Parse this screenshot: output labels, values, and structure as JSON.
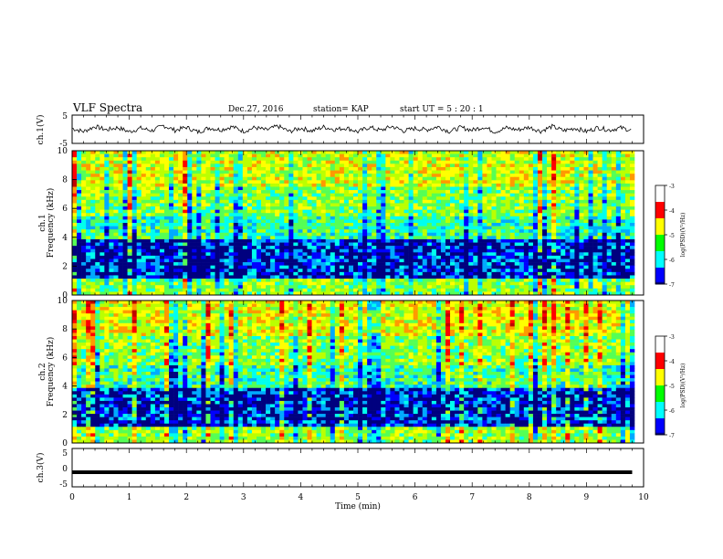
{
  "header": {
    "title": "VLF Spectra",
    "date": "Dec.27, 2016",
    "station": "station= KAP",
    "start": "start  UT =   5 : 20 : 1"
  },
  "colormap": [
    "#00007f",
    "#0000ff",
    "#00aaff",
    "#00ffee",
    "#55ff55",
    "#bbff00",
    "#ffff00",
    "#ff9900",
    "#ff0000",
    "#c00000"
  ],
  "chart_data": [
    {
      "type": "line",
      "name": "ch1-waveform",
      "ylabel": "ch.1(V)",
      "ylim": [
        -5,
        5
      ],
      "yticks": [
        "5",
        "-5"
      ],
      "xlim": [
        0,
        10
      ],
      "points": [
        [
          0,
          0.3
        ],
        [
          0.2,
          -0.8
        ],
        [
          0.4,
          1.0
        ],
        [
          0.6,
          -0.2
        ],
        [
          0.8,
          0.6
        ],
        [
          1.0,
          -0.9
        ],
        [
          1.2,
          0.4
        ],
        [
          1.4,
          -0.5
        ],
        [
          1.6,
          1.3
        ],
        [
          1.8,
          -0.4
        ],
        [
          2.0,
          0.7
        ],
        [
          2.2,
          -1.0
        ],
        [
          2.4,
          0.5
        ],
        [
          2.6,
          -0.2
        ],
        [
          2.8,
          0.9
        ],
        [
          3.0,
          -0.7
        ],
        [
          3.2,
          0.6
        ],
        [
          3.4,
          -0.3
        ],
        [
          3.6,
          1.1
        ],
        [
          3.8,
          -0.8
        ],
        [
          4.0,
          0.4
        ],
        [
          4.2,
          -0.6
        ],
        [
          4.4,
          0.8
        ],
        [
          4.6,
          -0.1
        ],
        [
          4.8,
          0.5
        ],
        [
          5.0,
          -0.9
        ],
        [
          5.2,
          0.7
        ],
        [
          5.4,
          -0.4
        ],
        [
          5.6,
          1.0
        ],
        [
          5.8,
          -0.6
        ],
        [
          6.0,
          0.3
        ],
        [
          6.2,
          -0.2
        ],
        [
          6.4,
          0.9
        ],
        [
          6.6,
          -0.8
        ],
        [
          6.8,
          0.6
        ],
        [
          7.0,
          -0.3
        ],
        [
          7.2,
          0.8
        ],
        [
          7.4,
          -0.9
        ],
        [
          7.6,
          0.5
        ],
        [
          7.8,
          -0.2
        ],
        [
          8.0,
          0.7
        ],
        [
          8.2,
          -0.7
        ],
        [
          8.4,
          1.0
        ],
        [
          8.6,
          -0.5
        ],
        [
          8.8,
          0.4
        ],
        [
          9.0,
          -0.8
        ],
        [
          9.2,
          0.6
        ],
        [
          9.4,
          -0.3
        ],
        [
          9.6,
          0.5
        ],
        [
          9.8,
          -0.4
        ]
      ]
    },
    {
      "type": "heatmap",
      "name": "ch1-spectrogram",
      "ylabel": "ch.1",
      "ylabel2": "Frequency (kHz)",
      "xlim": [
        0,
        10
      ],
      "ylim": [
        0,
        10
      ],
      "yticks": [
        "0",
        "2",
        "4",
        "6",
        "8",
        "10"
      ],
      "colorbar": {
        "range": [
          -7,
          -3
        ],
        "ticks": [
          "-3",
          "-4",
          "-5",
          "-6",
          "-7"
        ],
        "label": "log(PSD)(V²/Hz)"
      }
    },
    {
      "type": "heatmap",
      "name": "ch2-spectrogram",
      "ylabel": "ch.2",
      "ylabel2": "Frequency (kHz)",
      "xlim": [
        0,
        10
      ],
      "ylim": [
        0,
        10
      ],
      "yticks": [
        "0",
        "2",
        "4",
        "6",
        "8",
        "10"
      ],
      "colorbar": {
        "range": [
          -7,
          -3
        ],
        "ticks": [
          "-3",
          "-4",
          "-5",
          "-6",
          "-7"
        ],
        "label": "log(PSD)(V²/Hz)"
      }
    },
    {
      "type": "line",
      "name": "ch3-waveform",
      "ylabel": "ch.3(V)",
      "ylim": [
        -5,
        5
      ],
      "yticks": [
        "5",
        "0",
        "-5"
      ],
      "xlim": [
        0,
        10
      ],
      "points": [
        [
          0,
          -1.2
        ],
        [
          9.8,
          -1.2
        ]
      ]
    }
  ],
  "xaxis": {
    "label": "Time (min)",
    "ticks": [
      "0",
      "1",
      "2",
      "3",
      "4",
      "5",
      "6",
      "7",
      "8",
      "9",
      "10"
    ]
  }
}
